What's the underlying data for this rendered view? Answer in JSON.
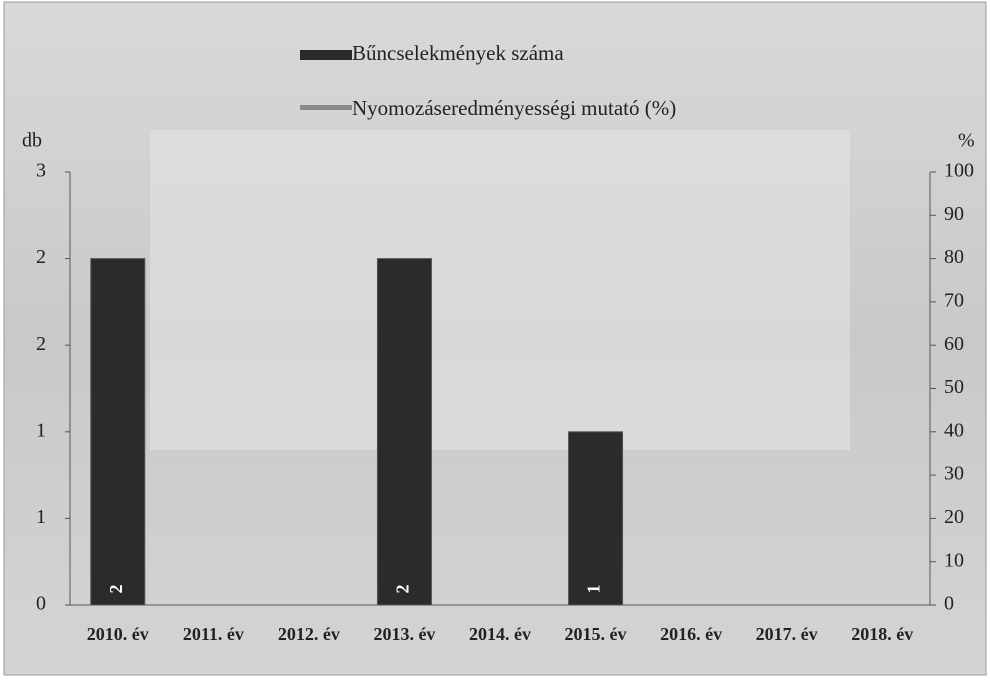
{
  "chart_data": {
    "type": "bar",
    "categories": [
      "2010. év",
      "2011. év",
      "2012. év",
      "2013. év",
      "2014. év",
      "2015. év",
      "2016. év",
      "2017. év",
      "2018. év"
    ],
    "series": [
      {
        "name": "Bűncselekmények száma",
        "color": "#2b2b2b",
        "values": [
          2,
          null,
          null,
          2,
          null,
          1,
          null,
          null,
          null
        ]
      },
      {
        "name": "Nyomozáseredményességi mutató (%)",
        "color": "#8a8a8a",
        "axis": "y2",
        "values": [
          null,
          null,
          null,
          null,
          null,
          null,
          null,
          null,
          null
        ]
      }
    ],
    "ylabel": "db",
    "y2label": "%",
    "ylim": [
      0,
      2.5
    ],
    "yticks": [
      0,
      {
        "value": 0.5,
        "label": "1"
      },
      1,
      {
        "value": 1.5,
        "label": "2"
      },
      2,
      {
        "value": 2.5,
        "label": "3"
      }
    ],
    "y2lim": [
      0,
      100
    ],
    "y2ticks": [
      0,
      10,
      20,
      30,
      40,
      50,
      60,
      70,
      80,
      90,
      100
    ]
  }
}
